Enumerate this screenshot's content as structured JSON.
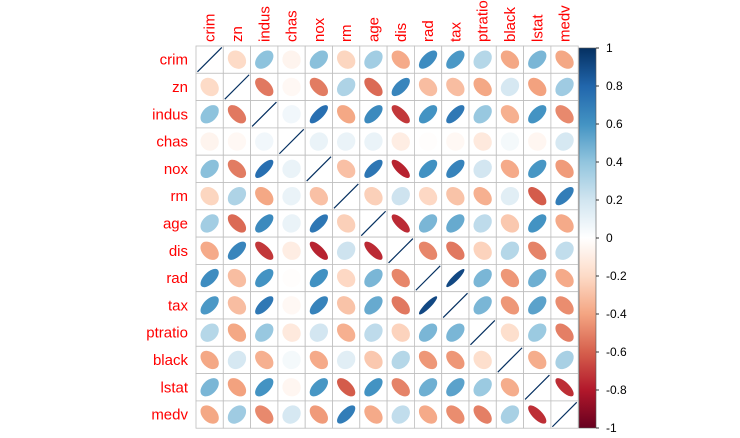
{
  "chart_data": {
    "type": "heatmap",
    "method": "ellipse",
    "variables": [
      "crim",
      "zn",
      "indus",
      "chas",
      "nox",
      "rm",
      "age",
      "dis",
      "rad",
      "tax",
      "ptratio",
      "black",
      "lstat",
      "medv"
    ],
    "matrix": [
      [
        1.0,
        -0.2,
        0.41,
        -0.06,
        0.42,
        -0.22,
        0.35,
        -0.38,
        0.63,
        0.58,
        0.29,
        -0.39,
        0.46,
        -0.39
      ],
      [
        -0.2,
        1.0,
        -0.53,
        -0.04,
        -0.52,
        0.31,
        -0.57,
        0.66,
        -0.31,
        -0.31,
        -0.39,
        0.18,
        -0.41,
        0.36
      ],
      [
        0.41,
        -0.53,
        1.0,
        0.06,
        0.76,
        -0.39,
        0.64,
        -0.71,
        0.6,
        0.72,
        0.38,
        -0.36,
        0.6,
        -0.48
      ],
      [
        -0.06,
        -0.04,
        0.06,
        1.0,
        0.09,
        0.09,
        0.09,
        -0.1,
        -0.01,
        -0.04,
        -0.12,
        0.05,
        -0.05,
        0.18
      ],
      [
        0.42,
        -0.52,
        0.76,
        0.09,
        1.0,
        -0.3,
        0.73,
        -0.77,
        0.61,
        0.67,
        0.19,
        -0.38,
        0.59,
        -0.43
      ],
      [
        -0.22,
        0.31,
        -0.39,
        0.09,
        -0.3,
        1.0,
        -0.24,
        0.21,
        -0.21,
        -0.29,
        -0.36,
        0.13,
        -0.61,
        0.7
      ],
      [
        0.35,
        -0.57,
        0.64,
        0.09,
        0.73,
        -0.24,
        1.0,
        -0.75,
        0.46,
        0.51,
        0.26,
        -0.27,
        0.6,
        -0.38
      ],
      [
        -0.38,
        0.66,
        -0.71,
        -0.1,
        -0.77,
        0.21,
        -0.75,
        1.0,
        -0.49,
        -0.53,
        -0.23,
        0.29,
        -0.5,
        0.25
      ],
      [
        0.63,
        -0.31,
        0.6,
        -0.01,
        0.61,
        -0.21,
        0.46,
        -0.49,
        1.0,
        0.91,
        0.46,
        -0.44,
        0.49,
        -0.38
      ],
      [
        0.58,
        -0.31,
        0.72,
        -0.04,
        0.67,
        -0.29,
        0.51,
        -0.53,
        0.91,
        1.0,
        0.46,
        -0.44,
        0.54,
        -0.47
      ],
      [
        0.29,
        -0.39,
        0.38,
        -0.12,
        0.19,
        -0.36,
        0.26,
        -0.23,
        0.46,
        0.46,
        1.0,
        -0.18,
        0.37,
        -0.51
      ],
      [
        -0.39,
        0.18,
        -0.36,
        0.05,
        -0.38,
        0.13,
        -0.27,
        0.29,
        -0.44,
        -0.44,
        -0.18,
        1.0,
        -0.37,
        0.33
      ],
      [
        0.46,
        -0.41,
        0.6,
        -0.05,
        0.59,
        -0.61,
        0.6,
        -0.5,
        0.49,
        0.54,
        0.37,
        -0.37,
        1.0,
        -0.74
      ],
      [
        -0.39,
        0.36,
        -0.48,
        0.18,
        -0.43,
        0.7,
        -0.38,
        0.25,
        -0.38,
        -0.47,
        -0.51,
        0.33,
        -0.74,
        1.0
      ]
    ],
    "colorbar": {
      "ticks": [
        "1",
        "0.8",
        "0.6",
        "0.4",
        "0.2",
        "0",
        "-0.2",
        "-0.4",
        "-0.6",
        "-0.8",
        "-1"
      ],
      "range": [
        -1,
        1
      ]
    },
    "palette": [
      "#67001F",
      "#B2182B",
      "#D6604D",
      "#F4A582",
      "#FDDBC7",
      "#FFFFFF",
      "#D1E5F0",
      "#92C5DE",
      "#4393C3",
      "#2166AC",
      "#053061"
    ],
    "label_color": "#FF0000",
    "grid": true
  }
}
